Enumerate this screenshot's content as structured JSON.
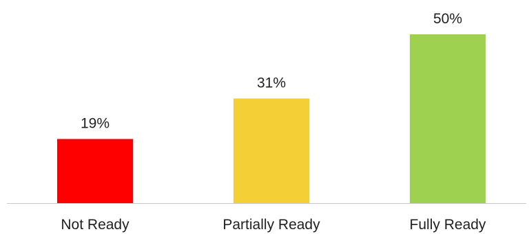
{
  "chart_data": {
    "type": "bar",
    "categories": [
      "Not Ready",
      "Partially Ready",
      "Fully Ready"
    ],
    "values": [
      19,
      31,
      50
    ],
    "data_labels": [
      "19%",
      "31%",
      "50%"
    ],
    "unit": "%",
    "title": "",
    "xlabel": "",
    "ylabel": "",
    "ylim": [
      0,
      50
    ],
    "grid": false,
    "legend": "none",
    "colors": [
      "#ff0000",
      "#f4cf36",
      "#9ed150"
    ],
    "axis_color": "#c8c8c8"
  }
}
